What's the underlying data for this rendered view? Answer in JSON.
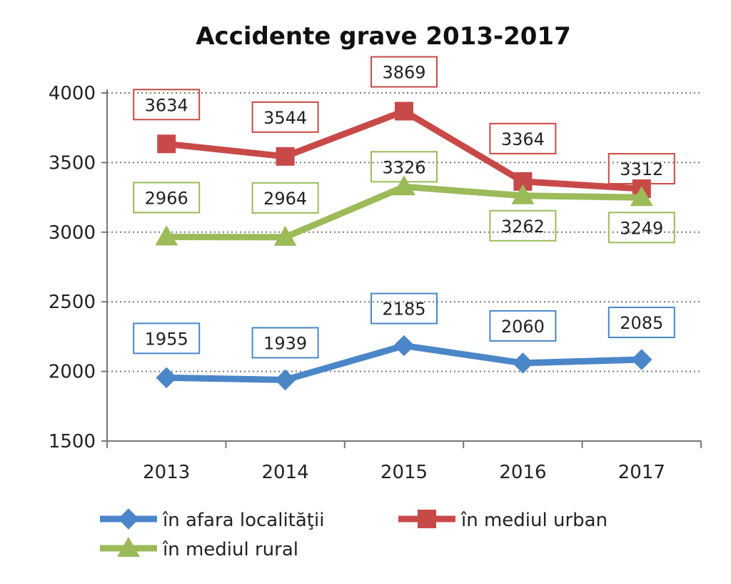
{
  "chart_data": {
    "type": "line",
    "title": "Accidente grave 2013-2017",
    "xlabel": "",
    "ylabel": "",
    "categories": [
      "2013",
      "2014",
      "2015",
      "2016",
      "2017"
    ],
    "ylim": [
      1500,
      4000
    ],
    "yticks": [
      1500,
      2000,
      2500,
      3000,
      3500,
      4000
    ],
    "grid": "horizontal-dotted",
    "legend_placement": "bottom",
    "series": [
      {
        "name": "în afara localităţii",
        "values": [
          1955,
          1939,
          2185,
          2060,
          2085
        ],
        "color": "#4a86c8",
        "marker": "diamond"
      },
      {
        "name": "în mediul urban",
        "values": [
          3634,
          3544,
          3869,
          3364,
          3312
        ],
        "color": "#c84a48",
        "marker": "square"
      },
      {
        "name": "în mediul rural",
        "values": [
          2966,
          2964,
          3326,
          3262,
          3249
        ],
        "color": "#9bbb59",
        "marker": "triangle"
      }
    ]
  }
}
